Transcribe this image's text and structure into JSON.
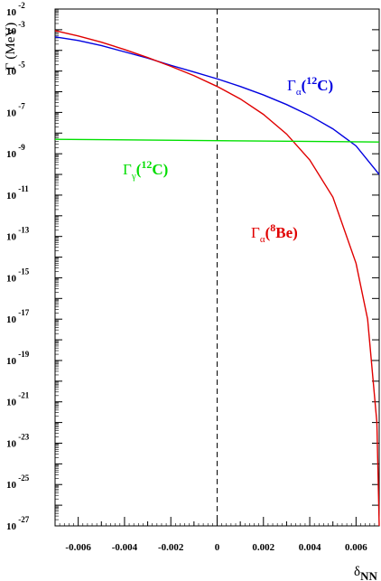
{
  "chart_data": {
    "type": "line",
    "title": "",
    "xlabel": {
      "main": "δ",
      "sub": "NN"
    },
    "ylabel": "Γ (MeV)",
    "xlim": [
      -0.007,
      0.007
    ],
    "ylim": [
      1e-27,
      0.01
    ],
    "yscale": "log",
    "x_ticks": [
      "-0.006",
      "-0.004",
      "-0.002",
      "0",
      "0.002",
      "0.004",
      "0.006"
    ],
    "y_ticks": [
      {
        "base": "10",
        "exp": "-2"
      },
      {
        "base": "10",
        "exp": "-3"
      },
      {
        "base": "10",
        "exp": "-5"
      },
      {
        "base": "10",
        "exp": "-7"
      },
      {
        "base": "10",
        "exp": "-9"
      },
      {
        "base": "10",
        "exp": "-11"
      },
      {
        "base": "10",
        "exp": "-13"
      },
      {
        "base": "10",
        "exp": "-15"
      },
      {
        "base": "10",
        "exp": "-17"
      },
      {
        "base": "10",
        "exp": "-19"
      },
      {
        "base": "10",
        "exp": "-21"
      },
      {
        "base": "10",
        "exp": "-23"
      },
      {
        "base": "10",
        "exp": "-25"
      },
      {
        "base": "10",
        "exp": "-27"
      }
    ],
    "reference_line": {
      "x": 0,
      "style": "dashed"
    },
    "series": [
      {
        "label": {
          "main": "Γ",
          "sub": "α",
          "sup": "12",
          "tail": "C"
        },
        "color": "#0000e0",
        "x": [
          -0.007,
          -0.006,
          -0.005,
          -0.004,
          -0.003,
          -0.002,
          -0.001,
          0.0,
          0.001,
          0.002,
          0.003,
          0.004,
          0.005,
          0.006,
          0.007
        ],
        "y": [
          0.00045,
          0.0003,
          0.00017,
          8.5e-05,
          4.2e-05,
          1.9e-05,
          9e-06,
          4.2e-06,
          1.8e-06,
          7e-07,
          2.4e-07,
          7e-08,
          1.6e-08,
          2.4e-09,
          1e-10
        ]
      },
      {
        "label": {
          "main": "Γ",
          "sub": "α",
          "sup": "8",
          "tail": "Be"
        },
        "color": "#e00000",
        "x": [
          -0.007,
          -0.006,
          -0.005,
          -0.004,
          -0.003,
          -0.002,
          -0.001,
          0.0,
          0.001,
          0.002,
          0.003,
          0.004,
          0.005,
          0.006,
          0.0065,
          0.0069,
          0.007
        ],
        "y": [
          0.0009,
          0.0005,
          0.00025,
          0.00011,
          4.5e-05,
          1.7e-05,
          6e-06,
          1.8e-06,
          4.5e-07,
          8e-08,
          9e-09,
          5e-10,
          8e-12,
          5e-15,
          1e-17,
          1e-22,
          1e-27
        ]
      },
      {
        "label": {
          "main": "Γ",
          "sub": "γ",
          "sup": "12",
          "tail": "C"
        },
        "color": "#00e000",
        "x": [
          -0.007,
          0.007
        ],
        "y": [
          5e-09,
          3.7e-09
        ]
      }
    ]
  }
}
